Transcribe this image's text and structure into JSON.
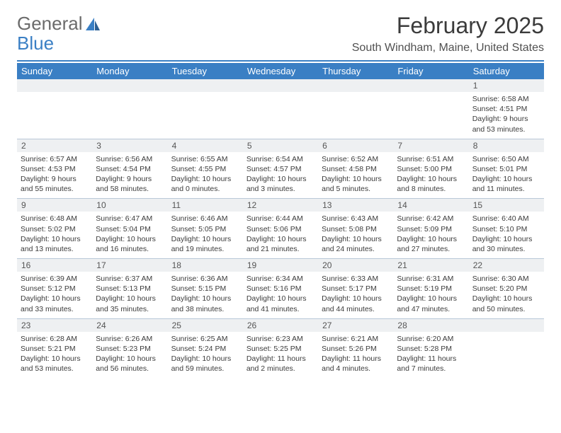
{
  "brand": {
    "first": "General",
    "second": "Blue"
  },
  "title": "February 2025",
  "location": "South Windham, Maine, United States",
  "colors": {
    "accent": "#3a7fc4",
    "headerBg": "#3a7fc4",
    "headerText": "#ffffff",
    "daynumBg": "#eef0f2",
    "divider": "#b9c8d8",
    "text": "#3b3b3b"
  },
  "dayNames": [
    "Sunday",
    "Monday",
    "Tuesday",
    "Wednesday",
    "Thursday",
    "Friday",
    "Saturday"
  ],
  "weeks": [
    [
      {
        "n": "",
        "sr": "",
        "ss": "",
        "dl": ""
      },
      {
        "n": "",
        "sr": "",
        "ss": "",
        "dl": ""
      },
      {
        "n": "",
        "sr": "",
        "ss": "",
        "dl": ""
      },
      {
        "n": "",
        "sr": "",
        "ss": "",
        "dl": ""
      },
      {
        "n": "",
        "sr": "",
        "ss": "",
        "dl": ""
      },
      {
        "n": "",
        "sr": "",
        "ss": "",
        "dl": ""
      },
      {
        "n": "1",
        "sr": "Sunrise: 6:58 AM",
        "ss": "Sunset: 4:51 PM",
        "dl": "Daylight: 9 hours and 53 minutes."
      }
    ],
    [
      {
        "n": "2",
        "sr": "Sunrise: 6:57 AM",
        "ss": "Sunset: 4:53 PM",
        "dl": "Daylight: 9 hours and 55 minutes."
      },
      {
        "n": "3",
        "sr": "Sunrise: 6:56 AM",
        "ss": "Sunset: 4:54 PM",
        "dl": "Daylight: 9 hours and 58 minutes."
      },
      {
        "n": "4",
        "sr": "Sunrise: 6:55 AM",
        "ss": "Sunset: 4:55 PM",
        "dl": "Daylight: 10 hours and 0 minutes."
      },
      {
        "n": "5",
        "sr": "Sunrise: 6:54 AM",
        "ss": "Sunset: 4:57 PM",
        "dl": "Daylight: 10 hours and 3 minutes."
      },
      {
        "n": "6",
        "sr": "Sunrise: 6:52 AM",
        "ss": "Sunset: 4:58 PM",
        "dl": "Daylight: 10 hours and 5 minutes."
      },
      {
        "n": "7",
        "sr": "Sunrise: 6:51 AM",
        "ss": "Sunset: 5:00 PM",
        "dl": "Daylight: 10 hours and 8 minutes."
      },
      {
        "n": "8",
        "sr": "Sunrise: 6:50 AM",
        "ss": "Sunset: 5:01 PM",
        "dl": "Daylight: 10 hours and 11 minutes."
      }
    ],
    [
      {
        "n": "9",
        "sr": "Sunrise: 6:48 AM",
        "ss": "Sunset: 5:02 PM",
        "dl": "Daylight: 10 hours and 13 minutes."
      },
      {
        "n": "10",
        "sr": "Sunrise: 6:47 AM",
        "ss": "Sunset: 5:04 PM",
        "dl": "Daylight: 10 hours and 16 minutes."
      },
      {
        "n": "11",
        "sr": "Sunrise: 6:46 AM",
        "ss": "Sunset: 5:05 PM",
        "dl": "Daylight: 10 hours and 19 minutes."
      },
      {
        "n": "12",
        "sr": "Sunrise: 6:44 AM",
        "ss": "Sunset: 5:06 PM",
        "dl": "Daylight: 10 hours and 21 minutes."
      },
      {
        "n": "13",
        "sr": "Sunrise: 6:43 AM",
        "ss": "Sunset: 5:08 PM",
        "dl": "Daylight: 10 hours and 24 minutes."
      },
      {
        "n": "14",
        "sr": "Sunrise: 6:42 AM",
        "ss": "Sunset: 5:09 PM",
        "dl": "Daylight: 10 hours and 27 minutes."
      },
      {
        "n": "15",
        "sr": "Sunrise: 6:40 AM",
        "ss": "Sunset: 5:10 PM",
        "dl": "Daylight: 10 hours and 30 minutes."
      }
    ],
    [
      {
        "n": "16",
        "sr": "Sunrise: 6:39 AM",
        "ss": "Sunset: 5:12 PM",
        "dl": "Daylight: 10 hours and 33 minutes."
      },
      {
        "n": "17",
        "sr": "Sunrise: 6:37 AM",
        "ss": "Sunset: 5:13 PM",
        "dl": "Daylight: 10 hours and 35 minutes."
      },
      {
        "n": "18",
        "sr": "Sunrise: 6:36 AM",
        "ss": "Sunset: 5:15 PM",
        "dl": "Daylight: 10 hours and 38 minutes."
      },
      {
        "n": "19",
        "sr": "Sunrise: 6:34 AM",
        "ss": "Sunset: 5:16 PM",
        "dl": "Daylight: 10 hours and 41 minutes."
      },
      {
        "n": "20",
        "sr": "Sunrise: 6:33 AM",
        "ss": "Sunset: 5:17 PM",
        "dl": "Daylight: 10 hours and 44 minutes."
      },
      {
        "n": "21",
        "sr": "Sunrise: 6:31 AM",
        "ss": "Sunset: 5:19 PM",
        "dl": "Daylight: 10 hours and 47 minutes."
      },
      {
        "n": "22",
        "sr": "Sunrise: 6:30 AM",
        "ss": "Sunset: 5:20 PM",
        "dl": "Daylight: 10 hours and 50 minutes."
      }
    ],
    [
      {
        "n": "23",
        "sr": "Sunrise: 6:28 AM",
        "ss": "Sunset: 5:21 PM",
        "dl": "Daylight: 10 hours and 53 minutes."
      },
      {
        "n": "24",
        "sr": "Sunrise: 6:26 AM",
        "ss": "Sunset: 5:23 PM",
        "dl": "Daylight: 10 hours and 56 minutes."
      },
      {
        "n": "25",
        "sr": "Sunrise: 6:25 AM",
        "ss": "Sunset: 5:24 PM",
        "dl": "Daylight: 10 hours and 59 minutes."
      },
      {
        "n": "26",
        "sr": "Sunrise: 6:23 AM",
        "ss": "Sunset: 5:25 PM",
        "dl": "Daylight: 11 hours and 2 minutes."
      },
      {
        "n": "27",
        "sr": "Sunrise: 6:21 AM",
        "ss": "Sunset: 5:26 PM",
        "dl": "Daylight: 11 hours and 4 minutes."
      },
      {
        "n": "28",
        "sr": "Sunrise: 6:20 AM",
        "ss": "Sunset: 5:28 PM",
        "dl": "Daylight: 11 hours and 7 minutes."
      },
      {
        "n": "",
        "sr": "",
        "ss": "",
        "dl": ""
      }
    ]
  ]
}
